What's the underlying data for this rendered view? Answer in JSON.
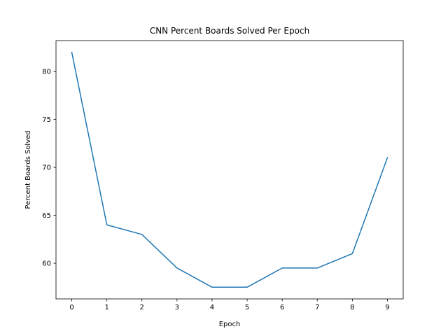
{
  "chart_data": {
    "type": "line",
    "title": "CNN Percent Boards Solved Per Epoch",
    "xlabel": "Epoch",
    "ylabel": "Percent Boards Solved",
    "x": [
      0,
      1,
      2,
      3,
      4,
      5,
      6,
      7,
      8,
      9
    ],
    "series": [
      {
        "values": [
          82,
          64,
          63,
          59.5,
          57.5,
          57.5,
          59.5,
          59.5,
          61,
          71
        ],
        "color": "#1f77b4"
      }
    ],
    "xticks": [
      "0",
      "1",
      "2",
      "3",
      "4",
      "5",
      "6",
      "7",
      "8",
      "9"
    ],
    "yticks": [
      "60",
      "65",
      "70",
      "75",
      "80"
    ],
    "xlim": [
      -0.45,
      9.45
    ],
    "ylim": [
      56.28,
      83.22
    ],
    "grid": false,
    "legend": false
  }
}
